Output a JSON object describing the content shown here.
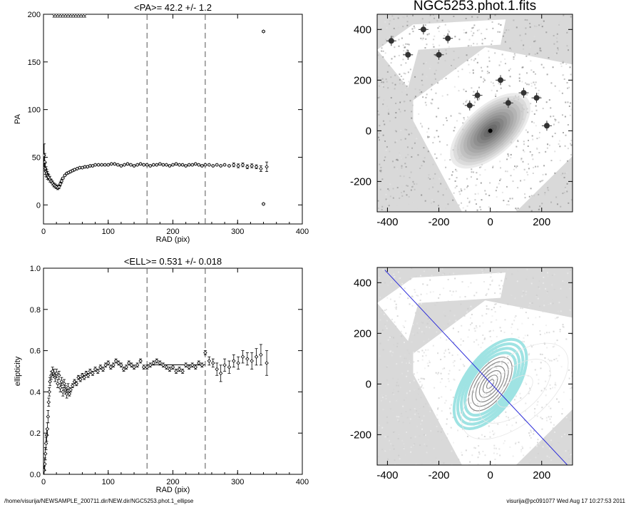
{
  "chart_data": [
    {
      "type": "scatter",
      "title": "<PA>=  42.2 +/-   1.2",
      "xlabel": "RAD (pix)",
      "ylabel": "PA",
      "xlim": [
        0,
        400
      ],
      "ylim": [
        -20,
        200
      ],
      "xticks": [
        0,
        100,
        200,
        300,
        400
      ],
      "yticks": [
        0,
        50,
        100,
        150,
        200
      ],
      "grid": false,
      "vlines_dashed": [
        160,
        250
      ],
      "series": [
        {
          "x": [
            1,
            2,
            3,
            4,
            5,
            6,
            7,
            8,
            10,
            12,
            14,
            16,
            18,
            20,
            22,
            24,
            26,
            28,
            30,
            33,
            36,
            39,
            42,
            45,
            48,
            52,
            56,
            60,
            64,
            68,
            72,
            76,
            80,
            85,
            90,
            95,
            100,
            105,
            110,
            115,
            120,
            125,
            130,
            135,
            140,
            145,
            150,
            155,
            160,
            165,
            170,
            175,
            180,
            185,
            190,
            195,
            200,
            205,
            210,
            215,
            220,
            225,
            230,
            235,
            240,
            245,
            250,
            256,
            262,
            268,
            274,
            280,
            287,
            294,
            301,
            308,
            315,
            322,
            329,
            336,
            345
          ],
          "y": [
            52,
            45,
            38,
            35,
            33,
            31,
            30,
            29,
            27,
            25,
            23,
            21,
            20,
            19,
            18,
            19,
            22,
            25,
            28,
            31,
            33,
            34,
            35,
            36,
            37,
            38,
            39,
            39,
            40,
            40,
            41,
            41,
            42,
            42,
            42,
            42,
            42,
            43,
            43,
            42,
            41,
            42,
            43,
            42,
            41,
            42,
            43,
            42,
            42,
            41,
            42,
            42,
            43,
            42,
            42,
            41,
            42,
            43,
            42,
            42,
            41,
            42,
            42,
            43,
            42,
            41,
            42,
            42,
            41,
            42,
            41,
            42,
            41,
            42,
            41,
            42,
            40,
            41,
            40,
            38,
            40
          ],
          "err": [
            12,
            9,
            6,
            5,
            4,
            4,
            3,
            3,
            3,
            2,
            2,
            2,
            2,
            2,
            2,
            2,
            2,
            2,
            1,
            1,
            1,
            1,
            1,
            1,
            1,
            1,
            1,
            1,
            1,
            1,
            1,
            1,
            1,
            1,
            1,
            1,
            1,
            1,
            1,
            1,
            1,
            1,
            1,
            1,
            1,
            1,
            1,
            1,
            1,
            1,
            1,
            1,
            1,
            1,
            1,
            1,
            1,
            1,
            1,
            1,
            1,
            1,
            1,
            1,
            1,
            1,
            1,
            1,
            1,
            1,
            1,
            1,
            1,
            2,
            2,
            2,
            2,
            2,
            2,
            3,
            5
          ]
        },
        {
          "x": [
            340,
            340
          ],
          "y": [
            182,
            1
          ],
          "err": [
            1,
            1
          ]
        },
        {
          "x": [
            16,
            20,
            24,
            28,
            32,
            36,
            40,
            44,
            48,
            52,
            56,
            60,
            64
          ],
          "y": [
            200,
            200,
            200,
            200,
            200,
            200,
            200,
            200,
            200,
            200,
            200,
            200,
            200
          ],
          "err": [
            3,
            3,
            3,
            3,
            3,
            3,
            3,
            3,
            3,
            3,
            3,
            3,
            3
          ]
        }
      ]
    },
    {
      "type": "scatter",
      "title": "<ELL>= 0.531 +/-  0.018",
      "xlabel": "RAD (pix)",
      "ylabel": "ellipticity",
      "xlim": [
        0,
        400
      ],
      "ylim": [
        0,
        1
      ],
      "xticks": [
        0,
        100,
        200,
        300,
        400
      ],
      "yticks": [
        0.0,
        0.2,
        0.4,
        0.6,
        0.8,
        1.0
      ],
      "grid": false,
      "vlines_dashed": [
        160,
        250
      ],
      "hline_segment": {
        "x": [
          160,
          250
        ],
        "y": 0.531
      },
      "series": [
        {
          "x": [
            1,
            2,
            3,
            4,
            5,
            6,
            7,
            8,
            9,
            10,
            12,
            14,
            16,
            18,
            20,
            22,
            24,
            26,
            28,
            30,
            32,
            34,
            36,
            38,
            40,
            42,
            45,
            48,
            51,
            54,
            57,
            60,
            63,
            66,
            69,
            72,
            76,
            80,
            84,
            88,
            92,
            96,
            100,
            104,
            108,
            112,
            116,
            120,
            124,
            128,
            132,
            136,
            140,
            145,
            150,
            155,
            160,
            165,
            170,
            175,
            180,
            185,
            190,
            195,
            200,
            205,
            210,
            215,
            220,
            225,
            230,
            235,
            240,
            245,
            250,
            256,
            262,
            268,
            274,
            280,
            287,
            294,
            301,
            308,
            315,
            322,
            329,
            336,
            345
          ],
          "y": [
            0.02,
            0.05,
            0.1,
            0.15,
            0.19,
            0.22,
            0.28,
            0.35,
            0.4,
            0.45,
            0.48,
            0.5,
            0.49,
            0.47,
            0.49,
            0.44,
            0.48,
            0.42,
            0.45,
            0.4,
            0.44,
            0.41,
            0.39,
            0.42,
            0.39,
            0.41,
            0.43,
            0.45,
            0.44,
            0.47,
            0.46,
            0.48,
            0.47,
            0.49,
            0.48,
            0.5,
            0.49,
            0.51,
            0.5,
            0.52,
            0.51,
            0.53,
            0.54,
            0.52,
            0.53,
            0.55,
            0.54,
            0.53,
            0.51,
            0.52,
            0.54,
            0.53,
            0.52,
            0.53,
            0.55,
            0.52,
            0.52,
            0.53,
            0.54,
            0.55,
            0.54,
            0.53,
            0.52,
            0.51,
            0.52,
            0.5,
            0.51,
            0.5,
            0.53,
            0.52,
            0.53,
            0.52,
            0.54,
            0.53,
            0.59,
            0.55,
            0.54,
            0.51,
            0.49,
            0.53,
            0.52,
            0.55,
            0.54,
            0.57,
            0.56,
            0.55,
            0.57,
            0.58,
            0.54
          ],
          "err": [
            0.02,
            0.03,
            0.03,
            0.03,
            0.03,
            0.03,
            0.03,
            0.02,
            0.02,
            0.02,
            0.02,
            0.02,
            0.02,
            0.02,
            0.02,
            0.02,
            0.02,
            0.02,
            0.02,
            0.02,
            0.02,
            0.02,
            0.02,
            0.02,
            0.01,
            0.01,
            0.01,
            0.01,
            0.01,
            0.01,
            0.01,
            0.01,
            0.01,
            0.01,
            0.01,
            0.01,
            0.01,
            0.01,
            0.01,
            0.01,
            0.01,
            0.01,
            0.01,
            0.01,
            0.01,
            0.01,
            0.01,
            0.01,
            0.01,
            0.01,
            0.01,
            0.01,
            0.01,
            0.01,
            0.01,
            0.01,
            0.01,
            0.01,
            0.01,
            0.01,
            0.01,
            0.01,
            0.01,
            0.01,
            0.01,
            0.01,
            0.01,
            0.01,
            0.01,
            0.01,
            0.01,
            0.01,
            0.01,
            0.01,
            0.01,
            0.02,
            0.02,
            0.03,
            0.04,
            0.03,
            0.03,
            0.03,
            0.03,
            0.03,
            0.03,
            0.04,
            0.04,
            0.05,
            0.06
          ]
        }
      ]
    },
    {
      "type": "heatmap",
      "title": "NGC5253.phot.1.fits",
      "xlim": [
        -440,
        320
      ],
      "ylim": [
        -320,
        460
      ],
      "xticks": [
        -400,
        -200,
        0,
        200
      ],
      "yticks": [
        -200,
        0,
        200,
        400
      ],
      "background": "#d9d9d9",
      "stars": [
        [
          -165,
          365
        ],
        [
          -385,
          355
        ],
        [
          -320,
          300
        ],
        [
          220,
          20
        ],
        [
          130,
          150
        ],
        [
          70,
          110
        ],
        [
          -50,
          140
        ],
        [
          -80,
          100
        ],
        [
          180,
          130
        ],
        [
          -260,
          400
        ],
        [
          -200,
          300
        ],
        [
          40,
          200
        ]
      ]
    },
    {
      "type": "heatmap",
      "title": "",
      "xlim": [
        -440,
        320
      ],
      "ylim": [
        -320,
        460
      ],
      "xticks": [
        -400,
        -200,
        0,
        200
      ],
      "yticks": [
        -200,
        0,
        200,
        400
      ],
      "background": "#d9d9d9",
      "major_axis_line": {
        "x": [
          -410,
          300
        ],
        "y": [
          450,
          -320
        ],
        "color": "#2b2bd9"
      },
      "contour_color": "#9fe3e3",
      "isophote_color": "#8c8c8c"
    }
  ],
  "footer": {
    "left": "/home/visurija/NEWSAMPLE_200711.dir/NEW.dir/NGC5253.phot.1_ellipse",
    "right": "visurija@pc091077  Wed Aug 17 10:27:53 2011"
  }
}
